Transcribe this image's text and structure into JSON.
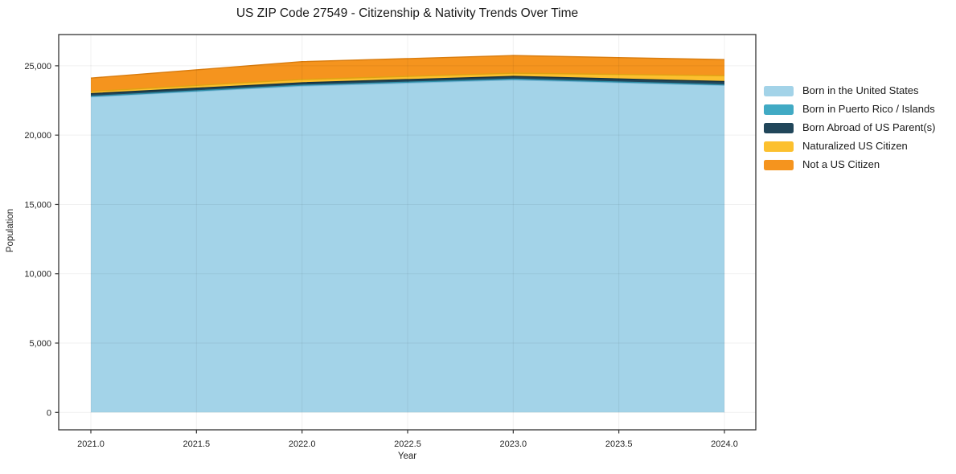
{
  "title": "US ZIP Code 27549 - Citizenship & Nativity Trends Over Time",
  "chart_data": {
    "type": "area",
    "stacked": true,
    "title": "US ZIP Code 27549 - Citizenship & Nativity Trends Over Time",
    "xlabel": "Year",
    "ylabel": "Population",
    "x": [
      2021,
      2022,
      2023,
      2024
    ],
    "series": [
      {
        "name": "Born in the United States",
        "color": "#A3D3E8",
        "edge": "#7fb9d9",
        "values": [
          22760,
          23540,
          23980,
          23590
        ]
      },
      {
        "name": "Born in Puerto Rico / Islands",
        "color": "#41AAC4",
        "edge": "#2e8fa8",
        "values": [
          40,
          60,
          60,
          40
        ]
      },
      {
        "name": "Born Abroad of US Parent(s)",
        "color": "#21465A",
        "edge": "#16323f",
        "values": [
          190,
          175,
          195,
          235
        ]
      },
      {
        "name": "Naturalized US Citizen",
        "color": "#FCC02E",
        "edge": "#dfa212",
        "values": [
          160,
          235,
          230,
          425
        ]
      },
      {
        "name": "Not a US Citizen",
        "color": "#F5941E",
        "edge": "#d97c0e",
        "values": [
          965,
          1290,
          1275,
          1155
        ]
      }
    ],
    "x_ticks": [
      2021.0,
      2021.5,
      2022.0,
      2022.5,
      2023.0,
      2023.5,
      2024.0
    ],
    "x_tick_labels": [
      "2021.0",
      "2021.5",
      "2022.0",
      "2022.5",
      "2023.0",
      "2023.5",
      "2024.0"
    ],
    "y_ticks": [
      0,
      5000,
      10000,
      15000,
      20000,
      25000
    ],
    "y_tick_labels": [
      "0",
      "5,000",
      "10,000",
      "15,000",
      "20,000",
      "25,000"
    ],
    "xlim": [
      2020.85,
      2024.15
    ],
    "ylim": [
      0,
      25000
    ],
    "grid": true,
    "legend_position": "right",
    "spine_color": "#333333",
    "tick_label_color": "#262626",
    "grid_color": "rgba(0,0,0,0.06)"
  }
}
